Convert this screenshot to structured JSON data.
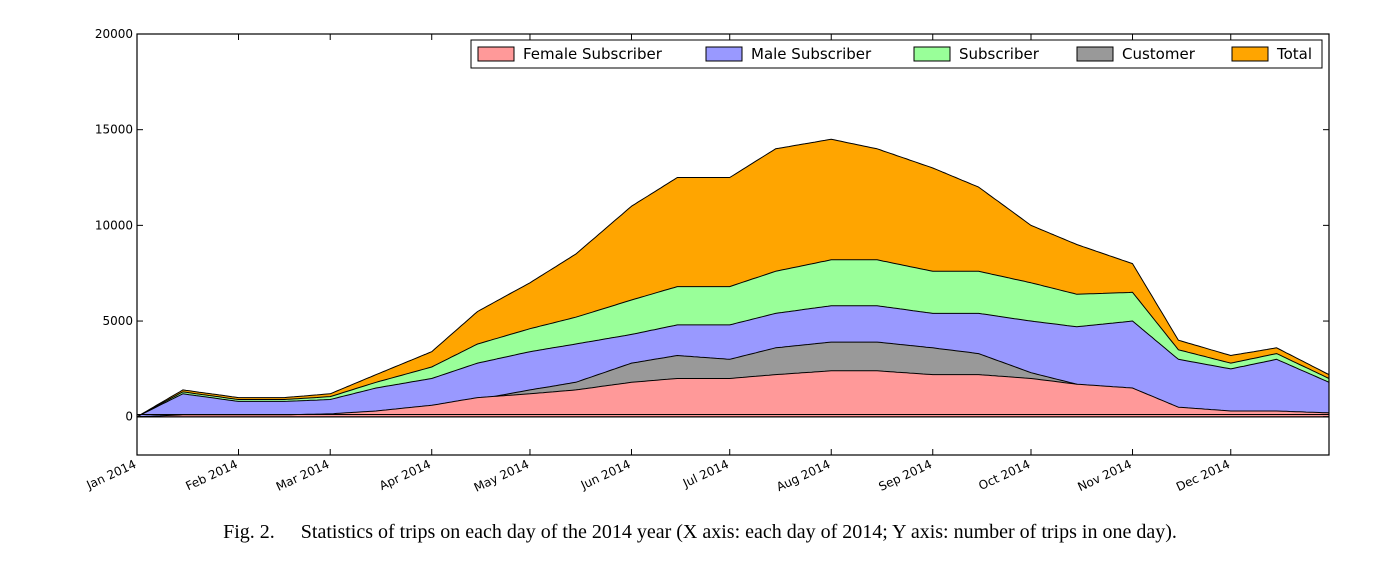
{
  "caption": {
    "label": "Fig. 2.",
    "text": "Statistics of trips on each day of the 2014 year (X axis: each day of 2014; Y axis: number of trips in one day)."
  },
  "chart_data": {
    "type": "area",
    "title": "",
    "xlabel": "",
    "ylabel": "",
    "ylim": [
      -2000,
      20000
    ],
    "xlim": [
      "2014-01-01",
      "2014-12-31"
    ],
    "yticks": [
      0,
      5000,
      10000,
      15000,
      20000
    ],
    "ytick_labels": [
      "0",
      "5000",
      "10000",
      "15000",
      "20000"
    ],
    "xtick_labels": [
      "Jan 2014",
      "Feb 2014",
      "Mar 2014",
      "Apr 2014",
      "May 2014",
      "Jun 2014",
      "Jul 2014",
      "Aug 2014",
      "Sep 2014",
      "Oct 2014",
      "Nov 2014",
      "Dec 2014"
    ],
    "xticks": [
      "2014-01-01",
      "2014-02-01",
      "2014-03-01",
      "2014-04-01",
      "2014-05-01",
      "2014-06-01",
      "2014-07-01",
      "2014-08-01",
      "2014-09-01",
      "2014-10-01",
      "2014-11-01",
      "2014-12-01"
    ],
    "grid": false,
    "legend_position": "top-right",
    "series": [
      {
        "name": "Female Subscriber",
        "color": "#ff9999",
        "x": [
          "2014-01-01",
          "2014-01-15",
          "2014-02-01",
          "2014-02-15",
          "2014-03-01",
          "2014-03-15",
          "2014-04-01",
          "2014-04-15",
          "2014-05-01",
          "2014-05-15",
          "2014-06-01",
          "2014-06-15",
          "2014-07-01",
          "2014-07-15",
          "2014-08-01",
          "2014-08-15",
          "2014-09-01",
          "2014-09-15",
          "2014-10-01",
          "2014-10-15",
          "2014-11-01",
          "2014-11-15",
          "2014-12-01",
          "2014-12-15",
          "2014-12-31"
        ],
        "values": [
          0,
          100,
          100,
          100,
          150,
          300,
          600,
          1000,
          1200,
          1400,
          1800,
          2000,
          2000,
          2200,
          2400,
          2400,
          2200,
          2200,
          2000,
          1700,
          1500,
          500,
          300,
          300,
          200
        ]
      },
      {
        "name": "Male Subscriber",
        "color": "#9999ff",
        "x": [
          "2014-01-01",
          "2014-01-15",
          "2014-02-01",
          "2014-02-15",
          "2014-03-01",
          "2014-03-15",
          "2014-04-01",
          "2014-04-15",
          "2014-05-01",
          "2014-05-15",
          "2014-06-01",
          "2014-06-15",
          "2014-07-01",
          "2014-07-15",
          "2014-08-01",
          "2014-08-15",
          "2014-09-01",
          "2014-09-15",
          "2014-10-01",
          "2014-10-15",
          "2014-11-01",
          "2014-11-15",
          "2014-12-01",
          "2014-12-15",
          "2014-12-31"
        ],
        "values": [
          0,
          1200,
          800,
          800,
          900,
          1500,
          2000,
          2800,
          3400,
          3800,
          4300,
          4800,
          4800,
          5400,
          5800,
          5800,
          5400,
          5400,
          5000,
          4700,
          5000,
          3000,
          2500,
          3000,
          1800
        ]
      },
      {
        "name": "Subscriber",
        "color": "#99ff99",
        "x": [
          "2014-01-01",
          "2014-01-15",
          "2014-02-01",
          "2014-02-15",
          "2014-03-01",
          "2014-03-15",
          "2014-04-01",
          "2014-04-15",
          "2014-05-01",
          "2014-05-15",
          "2014-06-01",
          "2014-06-15",
          "2014-07-01",
          "2014-07-15",
          "2014-08-01",
          "2014-08-15",
          "2014-09-01",
          "2014-09-15",
          "2014-10-01",
          "2014-10-15",
          "2014-11-01",
          "2014-11-15",
          "2014-12-01",
          "2014-12-15",
          "2014-12-31"
        ],
        "values": [
          0,
          1300,
          900,
          900,
          1050,
          1800,
          2600,
          3800,
          4600,
          5200,
          6100,
          6800,
          6800,
          7600,
          8200,
          8200,
          7600,
          7600,
          7000,
          6400,
          6500,
          3500,
          2800,
          3300,
          2000
        ]
      },
      {
        "name": "Customer",
        "color": "#999999",
        "x": [
          "2014-01-01",
          "2014-01-15",
          "2014-02-01",
          "2014-02-15",
          "2014-03-01",
          "2014-03-15",
          "2014-04-01",
          "2014-04-15",
          "2014-05-01",
          "2014-05-15",
          "2014-06-01",
          "2014-06-15",
          "2014-07-01",
          "2014-07-15",
          "2014-08-01",
          "2014-08-15",
          "2014-09-01",
          "2014-09-15",
          "2014-10-01",
          "2014-10-15",
          "2014-11-01",
          "2014-11-15",
          "2014-12-01",
          "2014-12-15",
          "2014-12-31"
        ],
        "values": [
          0,
          20,
          10,
          10,
          50,
          150,
          400,
          900,
          1400,
          1800,
          2800,
          3200,
          3000,
          3600,
          3900,
          3900,
          3600,
          3300,
          2300,
          1700,
          900,
          300,
          150,
          200,
          200
        ]
      },
      {
        "name": "Total",
        "color": "#ffa500",
        "x": [
          "2014-01-01",
          "2014-01-15",
          "2014-02-01",
          "2014-02-15",
          "2014-03-01",
          "2014-03-15",
          "2014-04-01",
          "2014-04-15",
          "2014-05-01",
          "2014-05-15",
          "2014-06-01",
          "2014-06-15",
          "2014-07-01",
          "2014-07-15",
          "2014-08-01",
          "2014-08-15",
          "2014-09-01",
          "2014-09-15",
          "2014-10-01",
          "2014-10-15",
          "2014-11-01",
          "2014-11-15",
          "2014-12-01",
          "2014-12-15",
          "2014-12-31"
        ],
        "values": [
          0,
          1400,
          1000,
          1000,
          1200,
          2200,
          3400,
          5500,
          7000,
          8500,
          11000,
          12500,
          12500,
          14000,
          14500,
          14000,
          13000,
          12000,
          10000,
          9000,
          8000,
          4000,
          3200,
          3600,
          2200
        ]
      }
    ]
  }
}
